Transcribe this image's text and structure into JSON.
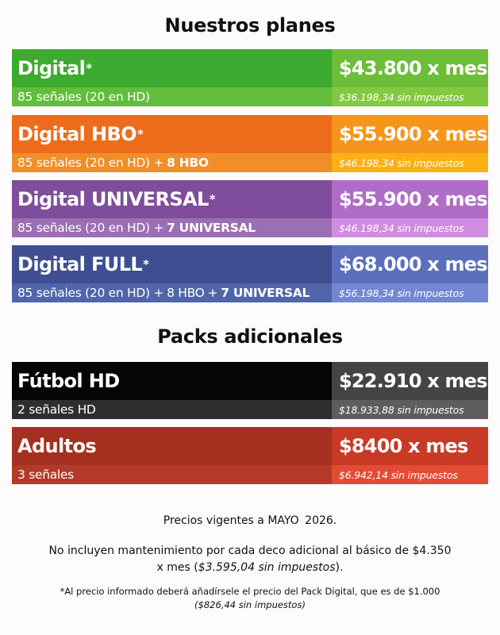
{
  "sections": {
    "plans_title": "Nuestros planes",
    "packs_title": "Packs adicionales"
  },
  "plans": [
    {
      "name": "Digital",
      "asterisk": "*",
      "channels": "85 señales (20 en HD)",
      "extras": [],
      "price": "$43.800 x mes",
      "price_no_tax": "$36.198,34 sin impuestos",
      "colors": {
        "name_bg": "#3daa30",
        "channels_bg": "#62bd3c",
        "price_bg": "#6cbd38",
        "tax_bg": "#83c93f"
      }
    },
    {
      "name": "Digital HBO",
      "asterisk": "*",
      "channels": "85 señales (20 en HD) +",
      "extras": [
        "8 HBO"
      ],
      "price": "$55.900 x mes",
      "price_no_tax": "$46.198,34 sin impuestos",
      "colors": {
        "name_bg": "#ed6c1c",
        "channels_bg": "#f08e27",
        "price_bg": "#f7951b",
        "tax_bg": "#fbb115"
      }
    },
    {
      "name": "Digital UNIVERSAL",
      "asterisk": "*",
      "channels": "85 señales (20 en HD) +",
      "extras": [
        "7 UNIVERSAL"
      ],
      "price": "$55.900 x mes",
      "price_no_tax": "$46.198,34 sin impuestos",
      "colors": {
        "name_bg": "#7f4d9b",
        "channels_bg": "#9b6fb3",
        "price_bg": "#b06cc6",
        "tax_bg": "#cf8de1"
      }
    },
    {
      "name": "Digital FULL",
      "asterisk": "*",
      "channels": "85 señales (20 en HD) +",
      "extras": [
        "8 HBO",
        "+",
        "7 UNIVERSAL"
      ],
      "price": "$68.000 x mes",
      "price_no_tax": "$56.198,34 sin impuestos",
      "colors": {
        "name_bg": "#3e4e91",
        "channels_bg": "#5065aa",
        "price_bg": "#5b6fbc",
        "tax_bg": "#7387d3"
      }
    }
  ],
  "packs": [
    {
      "name": "Fútbol HD",
      "channels": "2 señales HD",
      "price": "$22.910 x mes",
      "price_no_tax": "$18.933,88 sin impuestos",
      "colors": {
        "name_bg": "#050505",
        "channels_bg": "#2e2e2e",
        "price_bg": "#444444",
        "tax_bg": "#5e5e5e"
      }
    },
    {
      "name": "Adultos",
      "channels": "3 señales",
      "price": "$8400 x mes",
      "price_no_tax": "$6.942,14 sin impuestos",
      "colors": {
        "name_bg": "#a5301f",
        "channels_bg": "#b33a28",
        "price_bg": "#c83a26",
        "tax_bg": "#e34c34"
      }
    }
  ],
  "footer": {
    "validity_prefix": "Precios vigentes a MAYO",
    "validity_year": "2026.",
    "maintenance_text": "No incluyen mantenimiento por cada deco adicional al básico de $4.350 x mes (",
    "maintenance_italic": "$3.595,04 sin impuestos",
    "maintenance_end": ").",
    "note_text": "*Al precio informado deberá añadírsele el precio del Pack Digital, que es de $1.000",
    "note_italic": "($826,44 sin impuestos)"
  }
}
